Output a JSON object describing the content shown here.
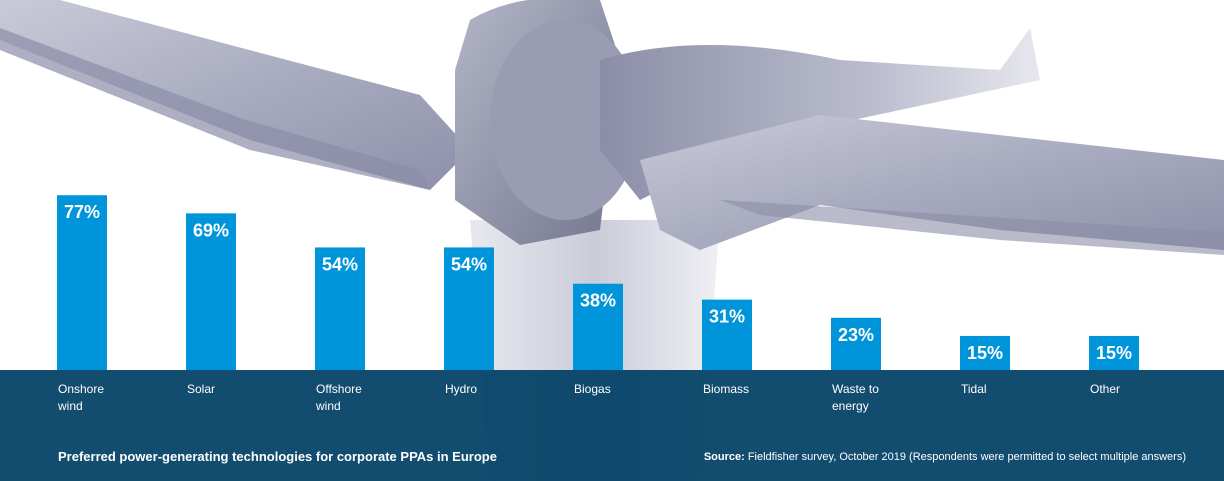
{
  "chart_data": {
    "type": "bar",
    "categories": [
      "Onshore wind",
      "Solar",
      "Offshore wind",
      "Hydro",
      "Biogas",
      "Biomass",
      "Waste to energy",
      "Tidal",
      "Other"
    ],
    "category_lines": [
      [
        "Onshore",
        "wind"
      ],
      [
        "Solar"
      ],
      [
        "Offshore",
        "wind"
      ],
      [
        "Hydro"
      ],
      [
        "Biogas"
      ],
      [
        "Biomass"
      ],
      [
        "Waste to",
        "energy"
      ],
      [
        "Tidal"
      ],
      [
        "Other"
      ]
    ],
    "values": [
      77,
      69,
      54,
      54,
      38,
      31,
      23,
      15,
      15
    ],
    "value_labels": [
      "77%",
      "69%",
      "54%",
      "54%",
      "38%",
      "31%",
      "23%",
      "15%",
      "15%"
    ],
    "unit": "%",
    "bar_color": "#0095da",
    "title": "Preferred power-generating technologies for corporate PPAs in Europe"
  },
  "caption": {
    "title": "Preferred power-generating technologies for corporate PPAs in Europe",
    "source_label": "Source:",
    "source_text": " Fieldfisher survey, October 2019 (Respondents were permitted to select multiple answers)"
  },
  "colors": {
    "band": "#003e64",
    "bar": "#0095da",
    "text": "#ffffff"
  }
}
